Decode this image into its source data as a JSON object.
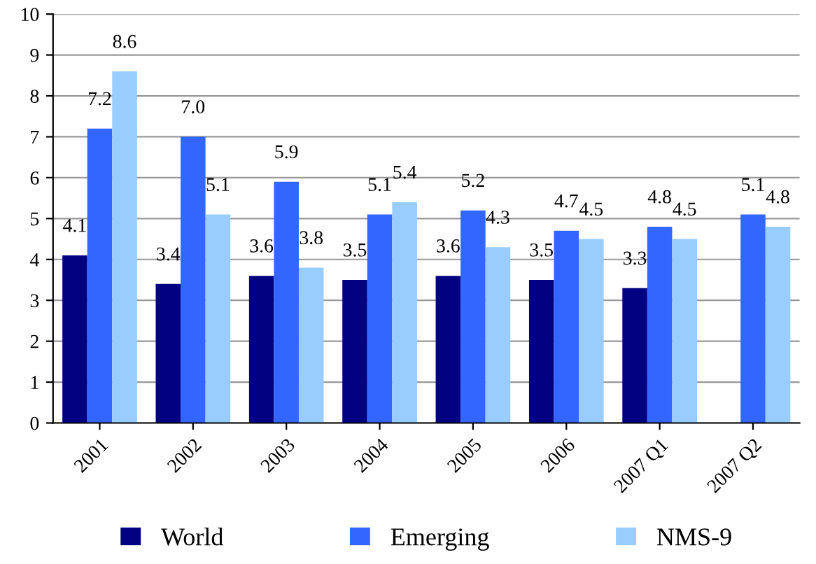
{
  "chart_data": {
    "type": "bar",
    "categories": [
      "2001",
      "2002",
      "2003",
      "2004",
      "2005",
      "2006",
      "2007 Q1",
      "2007 Q2"
    ],
    "series": [
      {
        "name": "World",
        "color": "#000080",
        "values": [
          4.1,
          3.4,
          3.6,
          3.5,
          3.6,
          3.5,
          3.3,
          null
        ],
        "value_labels": [
          "4.1",
          "3.4",
          "3.6",
          "3.5",
          "3.6",
          "3.5",
          "3.3",
          null
        ]
      },
      {
        "name": "Emerging",
        "color": "#3366ff",
        "values": [
          7.2,
          7.0,
          5.9,
          5.1,
          5.2,
          4.7,
          4.8,
          5.1
        ],
        "value_labels": [
          "7.2",
          "7.0",
          "5.9",
          "5.1",
          "5.2",
          "4.7",
          "4.8",
          "5.1"
        ]
      },
      {
        "name": "NMS-9",
        "color": "#99ccff",
        "values": [
          8.6,
          5.1,
          3.8,
          5.4,
          4.3,
          4.5,
          4.5,
          4.8
        ],
        "value_labels": [
          "8.6",
          "5.1",
          "3.8",
          "5.4",
          "4.3",
          "4.5",
          "4.5",
          "4.8"
        ]
      }
    ],
    "ylim": [
      0,
      10
    ],
    "yticks": [
      0,
      1,
      2,
      3,
      4,
      5,
      6,
      7,
      8,
      9,
      10
    ],
    "grid": "y",
    "legend": "bottom"
  }
}
